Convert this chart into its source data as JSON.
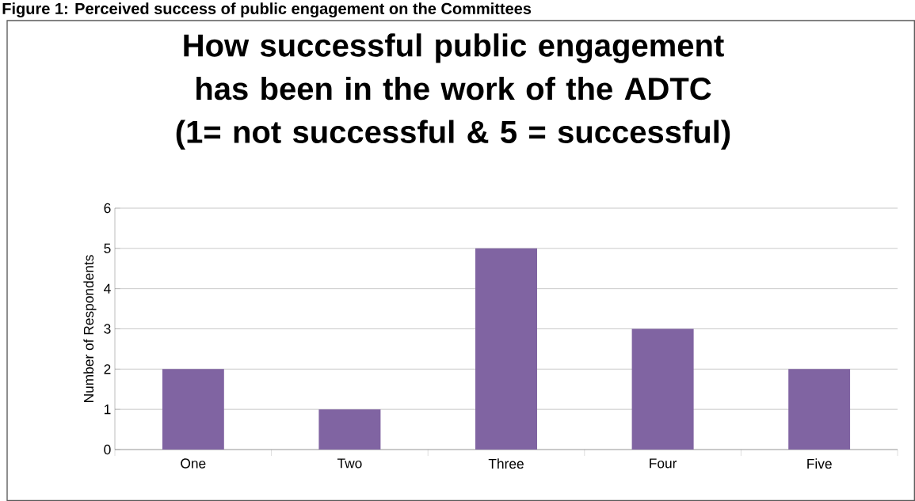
{
  "chart_data": {
    "type": "bar",
    "title": "How successful public engagement has been in the work of the ADTC (1= not successful & 5 = successful)",
    "ylabel": "Number of Respondents",
    "categories": [
      "One",
      "Two",
      "Three",
      "Four",
      "Five"
    ],
    "values": [
      2,
      1,
      5,
      3,
      2
    ],
    "color": "#8064a2",
    "ylim": [
      0,
      6
    ],
    "yticks": [
      0,
      1,
      2,
      3,
      4,
      5,
      6
    ],
    "grid": "y",
    "annotations": [
      "Figure 1: Perceived success of public engagement on the Committees"
    ]
  }
}
